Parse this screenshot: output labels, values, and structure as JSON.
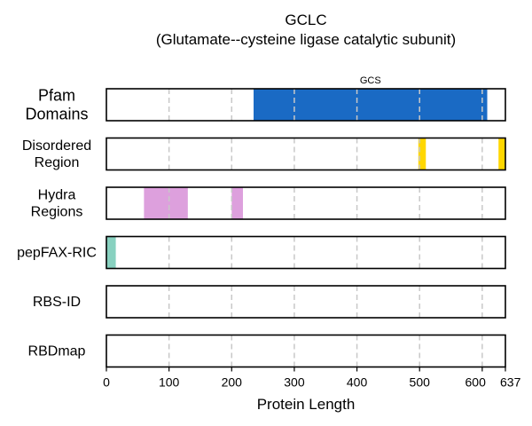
{
  "chart_data": {
    "type": "bar",
    "title": "GCLC",
    "subtitle": "(Glutamate--cysteine ligase catalytic subunit)",
    "xlabel": "Protein Length",
    "xlim": [
      0,
      637
    ],
    "xticks": [
      0,
      100,
      200,
      300,
      400,
      500,
      600,
      637
    ],
    "xtick_labels": [
      "0",
      "100",
      "200",
      "300",
      "400",
      "500",
      "600",
      "637"
    ],
    "grid": "vertical dashed",
    "tracks": [
      {
        "label": [
          "Pfam",
          "Domains"
        ],
        "segments": [
          {
            "start": 235,
            "end": 608,
            "color": "#1a6ac4",
            "label": "GCS"
          }
        ]
      },
      {
        "label": [
          "Disordered",
          "Region"
        ],
        "segments": [
          {
            "start": 498,
            "end": 510,
            "color": "#ffd700"
          },
          {
            "start": 626,
            "end": 637,
            "color": "#ffd700"
          }
        ]
      },
      {
        "label": [
          "Hydra",
          "Regions"
        ],
        "segments": [
          {
            "start": 60,
            "end": 130,
            "color": "#dda0dd"
          },
          {
            "start": 200,
            "end": 218,
            "color": "#dda0dd"
          }
        ]
      },
      {
        "label": [
          "pepFAX-RIC"
        ],
        "segments": [
          {
            "start": 0,
            "end": 15,
            "color": "#88d1c0"
          }
        ]
      },
      {
        "label": [
          "RBS-ID"
        ],
        "segments": []
      },
      {
        "label": [
          "RBDmap"
        ],
        "segments": []
      }
    ]
  }
}
